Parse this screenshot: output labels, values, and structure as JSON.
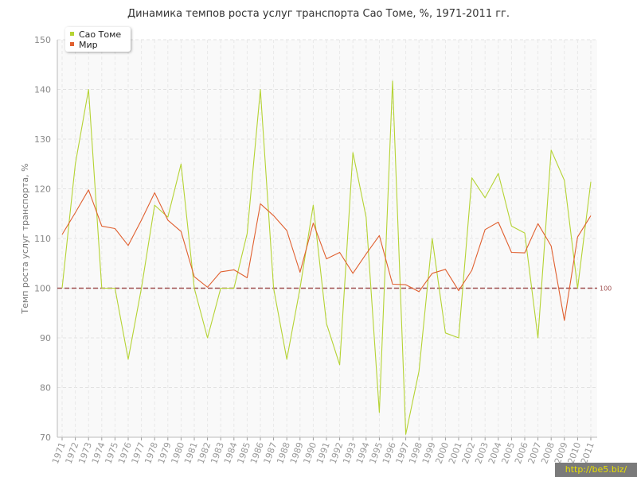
{
  "chart_data": {
    "type": "line",
    "title": "Динамика темпов роста услуг транспорта Сао Томе, %, 1971-2011 гг.",
    "ylabel": "Темп роста услуг транспорта, %",
    "xlabel": "",
    "ylim": [
      70,
      150
    ],
    "yticks": [
      70,
      80,
      90,
      100,
      110,
      120,
      130,
      140,
      150
    ],
    "grid": true,
    "legend_position": "top-left",
    "reference_line": {
      "value": 100,
      "label": "100",
      "color": "#a05050"
    },
    "categories": [
      "1971",
      "1972",
      "1973",
      "1974",
      "1975",
      "1976",
      "1977",
      "1978",
      "1979",
      "1980",
      "1981",
      "1982",
      "1983",
      "1984",
      "1985",
      "1986",
      "1987",
      "1988",
      "1989",
      "1990",
      "1991",
      "1992",
      "1993",
      "1994",
      "1995",
      "1996",
      "1997",
      "1998",
      "1999",
      "2000",
      "2001",
      "2002",
      "2003",
      "2004",
      "2005",
      "2006",
      "2007",
      "2008",
      "2009",
      "2010",
      "2011"
    ],
    "series": [
      {
        "name": "Сао Томе",
        "color": "#b5d334",
        "values": [
          100,
          125,
          140,
          100,
          100,
          85.7,
          100,
          116.7,
          114.3,
          125,
          100,
          90,
          100,
          100,
          111,
          140,
          100,
          85.7,
          100,
          116.7,
          92.9,
          84.6,
          127.3,
          114.3,
          75,
          141.7,
          70.6,
          83.3,
          110,
          91,
          90,
          122.2,
          118.2,
          123.1,
          112.5,
          111.1,
          90,
          127.8,
          121.7,
          100,
          121.4
        ]
      },
      {
        "name": "Мир",
        "color": "#e06030",
        "values": [
          110.8,
          115.2,
          119.8,
          112.5,
          112,
          108.6,
          113.7,
          119.2,
          113.7,
          111.4,
          102.3,
          100.2,
          103.3,
          103.7,
          102.1,
          117,
          114.6,
          111.6,
          103.2,
          113.1,
          105.9,
          107.2,
          103,
          106.9,
          110.6,
          100.8,
          100.7,
          99.3,
          103,
          103.8,
          99.5,
          103.6,
          111.8,
          113.3,
          107.2,
          107.1,
          113,
          108.5,
          93.5,
          110.3,
          114.6
        ]
      }
    ]
  },
  "watermark": "http://be5.biz/"
}
